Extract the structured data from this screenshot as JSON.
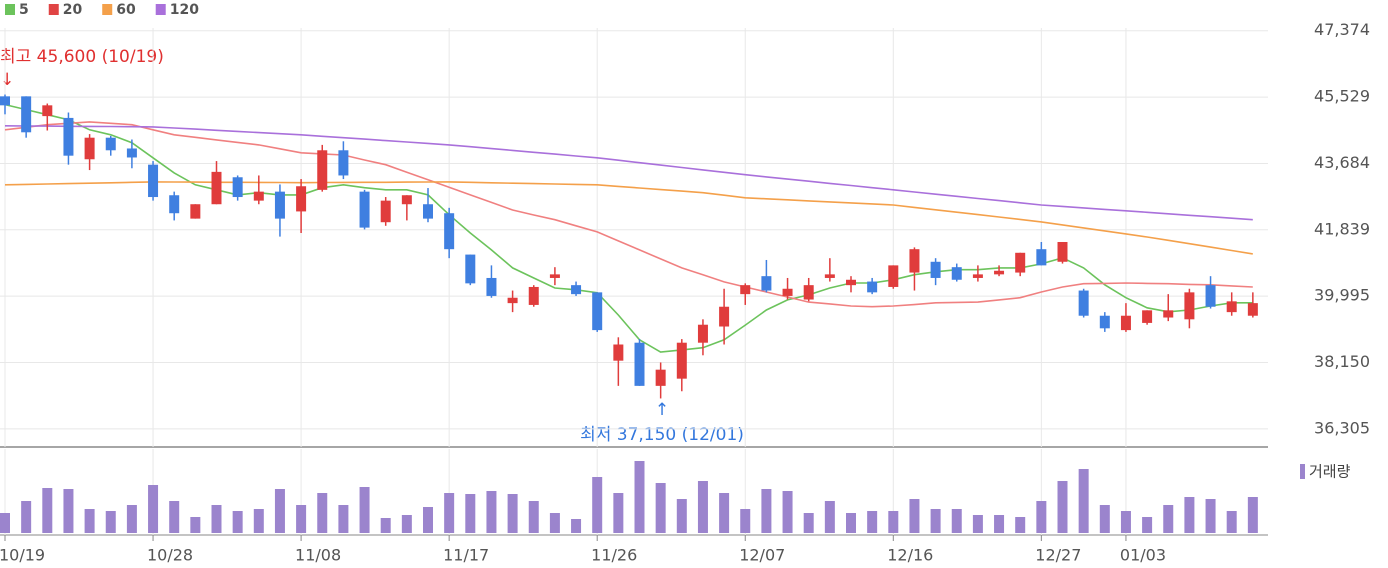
{
  "chart_data": {
    "type": "candlestick",
    "categories": [
      "10/19",
      null,
      null,
      null,
      null,
      null,
      null,
      "10/28",
      null,
      null,
      null,
      null,
      null,
      null,
      "11/08",
      null,
      null,
      null,
      null,
      null,
      null,
      "11/17",
      null,
      null,
      null,
      null,
      null,
      null,
      "11/26",
      null,
      null,
      null,
      null,
      null,
      null,
      "12/07",
      null,
      null,
      null,
      null,
      null,
      null,
      "12/16",
      null,
      null,
      null,
      null,
      null,
      null,
      "12/27",
      null,
      null,
      null,
      "01/03",
      null,
      null,
      null,
      null,
      null,
      null
    ],
    "candles": {
      "open": [
        45550,
        45550,
        45000,
        44950,
        43800,
        44400,
        44100,
        43650,
        42800,
        42150,
        42550,
        43300,
        42650,
        42900,
        42350,
        42950,
        44050,
        42900,
        42050,
        42550,
        42550,
        42300,
        41150,
        40500,
        39800,
        39750,
        40500,
        40300,
        40100,
        38200,
        38700,
        37500,
        37700,
        38700,
        39150,
        40050,
        40550,
        40000,
        39900,
        40500,
        40300,
        40400,
        40250,
        40650,
        40950,
        40800,
        40500,
        40600,
        40650,
        41300,
        40950,
        40150,
        39450,
        39050,
        39250,
        39400,
        39350,
        40300,
        39550,
        39450
      ],
      "high": [
        45600,
        45550,
        45350,
        45100,
        44500,
        44450,
        44350,
        43750,
        42900,
        42550,
        43750,
        43350,
        43350,
        43100,
        43250,
        44200,
        44300,
        42950,
        42750,
        42800,
        43000,
        42450,
        41150,
        40850,
        40150,
        40300,
        40800,
        40400,
        40100,
        38850,
        38800,
        38150,
        38800,
        39350,
        40200,
        40350,
        41000,
        40500,
        40500,
        41050,
        40550,
        40500,
        40850,
        41350,
        41050,
        40900,
        40850,
        40850,
        41200,
        41500,
        41500,
        40200,
        39550,
        39800,
        39600,
        40050,
        40200,
        40550,
        40100,
        40100
      ],
      "low": [
        45050,
        44400,
        44600,
        43650,
        43500,
        43900,
        43550,
        42650,
        42100,
        42150,
        42550,
        42650,
        42550,
        41650,
        41750,
        42900,
        43250,
        41850,
        41950,
        42100,
        42050,
        41050,
        40300,
        39950,
        39550,
        39700,
        40300,
        40000,
        39000,
        37500,
        37500,
        37150,
        37350,
        38350,
        38650,
        39750,
        40100,
        39900,
        39850,
        40400,
        40100,
        40050,
        40200,
        40150,
        40300,
        40400,
        40400,
        40550,
        40550,
        40850,
        40900,
        39400,
        39000,
        39000,
        39200,
        39300,
        39100,
        39650,
        39450,
        39400
      ],
      "close": [
        45300,
        44550,
        45300,
        43900,
        44400,
        44050,
        43850,
        42750,
        42300,
        42550,
        43450,
        42750,
        42900,
        42150,
        43050,
        44050,
        43350,
        41900,
        42650,
        42800,
        42150,
        41300,
        40350,
        40000,
        39950,
        40250,
        40600,
        40050,
        39050,
        38650,
        37500,
        37950,
        38700,
        39200,
        39700,
        40300,
        40150,
        40200,
        40300,
        40600,
        40450,
        40100,
        40850,
        41300,
        40500,
        40450,
        40600,
        40700,
        41200,
        40850,
        41500,
        39450,
        39100,
        39450,
        39600,
        39600,
        40100,
        39700,
        39850,
        39800
      ],
      "up_color": "#e03c3c",
      "down_color": "#3f7fe0"
    },
    "series": [
      {
        "name": "5",
        "color": "#6cc35c",
        "values": [
          45320,
          45180,
          45040,
          44900,
          44620,
          44480,
          44260,
          43840,
          43420,
          43090,
          42950,
          42810,
          42870,
          42810,
          42810,
          43010,
          43090,
          43010,
          42950,
          42950,
          42810,
          42260,
          41750,
          41280,
          40780,
          40500,
          40220,
          40170,
          40090,
          39470,
          38780,
          38440,
          38500,
          38560,
          38780,
          39190,
          39610,
          39890,
          40030,
          40220,
          40360,
          40360,
          40450,
          40590,
          40670,
          40730,
          40730,
          40780,
          40780,
          40890,
          41060,
          40780,
          40310,
          39950,
          39670,
          39560,
          39610,
          39720,
          39810,
          39810
        ]
      },
      {
        "name": "20",
        "color": "#f08080",
        "legend_color": "#e04444",
        "values": [
          44620,
          44690,
          44760,
          44800,
          44840,
          44800,
          44760,
          44620,
          44480,
          44410,
          44340,
          44270,
          44200,
          44090,
          43980,
          43950,
          43920,
          43780,
          43650,
          43440,
          43230,
          43020,
          42810,
          42600,
          42390,
          42250,
          42120,
          41950,
          41780,
          41530,
          41280,
          41030,
          40780,
          40590,
          40390,
          40250,
          40110,
          39970,
          39830,
          39780,
          39720,
          39700,
          39720,
          39760,
          39810,
          39820,
          39830,
          39890,
          39950,
          40110,
          40250,
          40340,
          40350,
          40360,
          40350,
          40340,
          40320,
          40310,
          40280,
          40250
        ]
      },
      {
        "name": "60",
        "color": "#f4a04a",
        "values": [
          43090,
          43101,
          43113,
          43124,
          43136,
          43147,
          43159,
          43170,
          43167,
          43164,
          43161,
          43159,
          43156,
          43153,
          43150,
          43153,
          43156,
          43159,
          43161,
          43164,
          43167,
          43170,
          43159,
          43147,
          43136,
          43124,
          43113,
          43101,
          43090,
          43046,
          43002,
          42958,
          42914,
          42870,
          42800,
          42730,
          42701,
          42673,
          42644,
          42616,
          42587,
          42559,
          42530,
          42463,
          42396,
          42329,
          42261,
          42194,
          42127,
          42060,
          41976,
          41892,
          41808,
          41724,
          41640,
          41546,
          41452,
          41358,
          41264,
          41170
        ]
      },
      {
        "name": "120",
        "color": "#a970db",
        "values": [
          44730,
          44726,
          44722,
          44718,
          44714,
          44710,
          44706,
          44700,
          44669,
          44638,
          44606,
          44575,
          44543,
          44512,
          44480,
          44440,
          44400,
          44360,
          44320,
          44280,
          44240,
          44200,
          44149,
          44097,
          44046,
          43994,
          43943,
          43891,
          43840,
          43773,
          43706,
          43639,
          43571,
          43504,
          43437,
          43370,
          43310,
          43250,
          43190,
          43130,
          43070,
          43010,
          42950,
          42890,
          42830,
          42770,
          42710,
          42650,
          42590,
          42530,
          42489,
          42448,
          42407,
          42366,
          42325,
          42284,
          42243,
          42202,
          42161,
          42120
        ]
      }
    ],
    "volume": {
      "name": "거래량",
      "color": "#9b84cd",
      "values": [
        20,
        32,
        45,
        44,
        24,
        22,
        28,
        48,
        32,
        16,
        28,
        22,
        24,
        44,
        28,
        40,
        28,
        46,
        15,
        18,
        26,
        40,
        39,
        42,
        39,
        32,
        20,
        14,
        56,
        40,
        72,
        50,
        34,
        52,
        40,
        24,
        44,
        42,
        20,
        32,
        20,
        22,
        22,
        34,
        24,
        24,
        18,
        18,
        16,
        32,
        52,
        64,
        28,
        22,
        16,
        28,
        36,
        34,
        22,
        36
      ]
    },
    "ylim": [
      35800,
      47450
    ],
    "yticks": [
      {
        "value": 36305,
        "label": "36,305"
      },
      {
        "value": 38150,
        "label": "38,150"
      },
      {
        "value": 39995,
        "label": "39,995"
      },
      {
        "value": 41839,
        "label": "41,839"
      },
      {
        "value": 43684,
        "label": "43,684"
      },
      {
        "value": 45529,
        "label": "45,529"
      },
      {
        "value": 47374,
        "label": "47,374"
      }
    ],
    "grid": true,
    "annotations": {
      "high": "최고 45,600 (10/19)",
      "low": "최저 37,150 (12/01)"
    }
  }
}
